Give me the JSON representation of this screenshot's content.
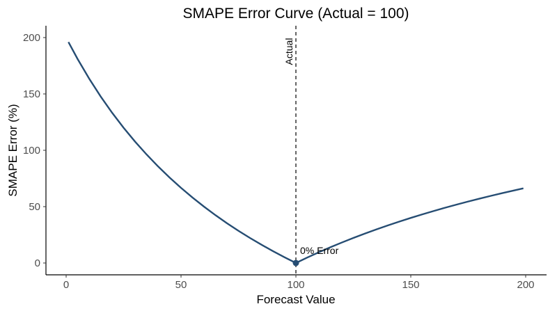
{
  "chart_data": {
    "type": "line",
    "title": "SMAPE Error Curve (Actual = 100)",
    "xlabel": "Forecast Value",
    "ylabel": "SMAPE Error (%)",
    "xlim": [
      0,
      200
    ],
    "ylim": [
      0,
      200
    ],
    "x_ticks": [
      0,
      50,
      100,
      150,
      200
    ],
    "y_ticks": [
      0,
      50,
      100,
      150,
      200
    ],
    "grid": false,
    "series": [
      {
        "color": "#264d73",
        "x": [
          1,
          5,
          10,
          15,
          20,
          25,
          30,
          35,
          40,
          45,
          50,
          55,
          60,
          65,
          70,
          75,
          80,
          85,
          90,
          95,
          100,
          105,
          110,
          115,
          120,
          125,
          130,
          135,
          140,
          145,
          150,
          155,
          160,
          165,
          170,
          175,
          180,
          185,
          190,
          195,
          199
        ],
        "y": [
          196.04,
          180.95,
          163.64,
          147.83,
          133.33,
          120.0,
          107.69,
          96.3,
          85.71,
          75.86,
          66.67,
          58.06,
          50.0,
          42.42,
          35.29,
          28.57,
          22.22,
          16.22,
          10.53,
          5.13,
          0.0,
          4.88,
          9.52,
          13.95,
          18.18,
          22.22,
          26.09,
          29.79,
          33.33,
          36.73,
          40.0,
          43.14,
          46.15,
          49.06,
          51.85,
          54.55,
          57.14,
          59.65,
          62.07,
          64.41,
          66.22
        ]
      }
    ],
    "reference_line": {
      "x": 100,
      "label": "Actual",
      "style": "dashed"
    },
    "highlight_point": {
      "x": 100,
      "y": 0,
      "label": "0% Error",
      "color": "#264d73"
    }
  }
}
